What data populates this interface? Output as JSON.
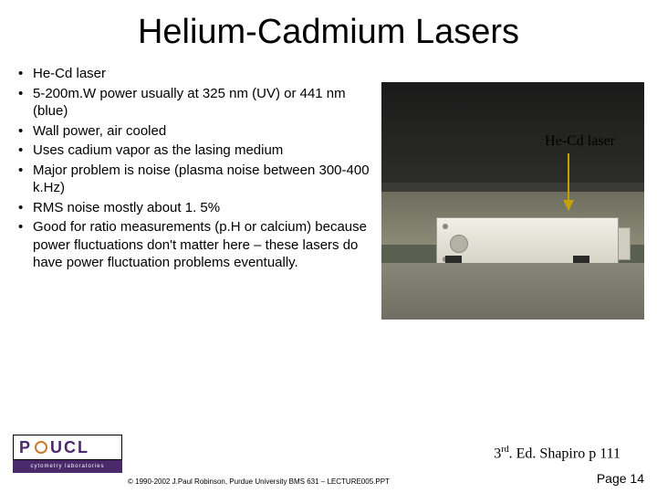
{
  "title": "Helium-Cadmium Lasers",
  "bullets": [
    "He-Cd laser",
    "5-200m.W power usually at 325 nm (UV) or 441 nm (blue)",
    "Wall power, air cooled",
    "Uses cadium vapor as the lasing medium",
    "Major problem is noise (plasma noise between 300-400 k.Hz)",
    "RMS noise mostly about 1. 5%",
    "Good for ratio measurements (p.H or calcium) because power fluctuations don't matter here – these lasers do have power fluctuation problems eventually."
  ],
  "photo": {
    "caption": "He-Cd laser",
    "arrow_color": "#c4a000"
  },
  "footer_ref": {
    "prefix": "3",
    "sup": "rd",
    "rest": ". Ed. Shapiro p 111"
  },
  "logo": {
    "letters_left": "P",
    "letters_mid": "U",
    "letters_right": "CL",
    "sub": "cytometry laboratories"
  },
  "copyright": "© 1990-2002 J.Paul Robinson, Purdue University  BMS 631 – LECTURE005.PPT",
  "page": "Page 14",
  "colors": {
    "title_color": "#000000",
    "bg": "#ffffff",
    "logo_purple": "#4a2a6a",
    "logo_orange": "#cc7a2a"
  }
}
